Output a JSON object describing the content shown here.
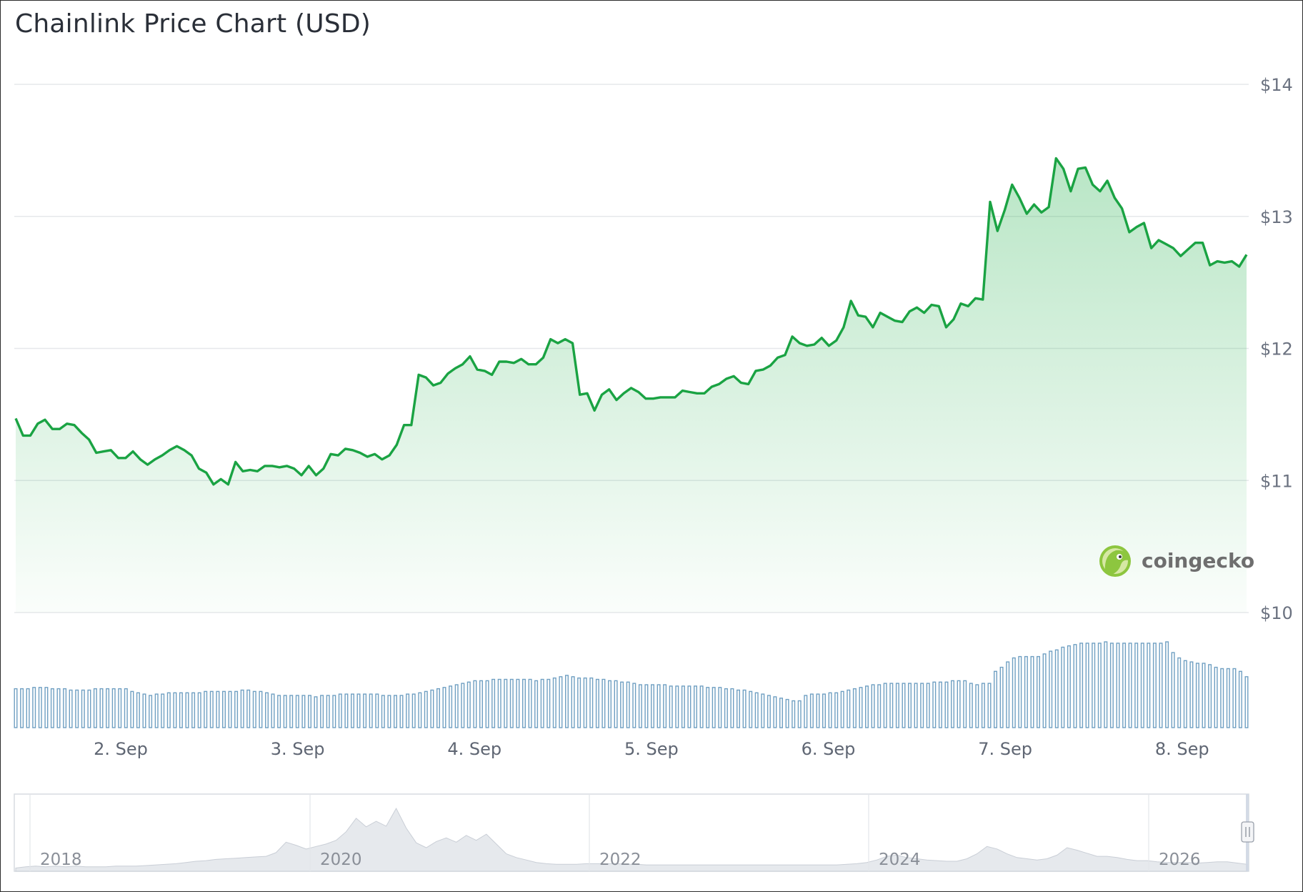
{
  "title": "Chainlink Price Chart (USD)",
  "brand": {
    "name": "coingecko",
    "logo_icon": "gecko-logo-icon"
  },
  "colors": {
    "price_line": "#1aa343",
    "price_fill": "#22b04b",
    "volume_bar": "#6f9fc2",
    "navigator_area": "#e6e9ed",
    "grid": "#e6e8eb"
  },
  "chart_data": {
    "type": "line",
    "title": "Chainlink Price Chart (USD)",
    "y_unit": "USD",
    "ylim": [
      10,
      14
    ],
    "y_ticks": [
      10,
      11,
      12,
      13,
      14
    ],
    "y_tick_labels": [
      "$10",
      "$11",
      "$12",
      "$13",
      "$14"
    ],
    "x_start": "2026-09-01T09:45",
    "x_end": "2026-09-08T08:45",
    "x_ticks": [
      "2026-09-02",
      "2026-09-03",
      "2026-09-04",
      "2026-09-05",
      "2026-09-06",
      "2026-09-07",
      "2026-09-08"
    ],
    "x_tick_labels": [
      "2. Sep",
      "3. Sep",
      "4. Sep",
      "5. Sep",
      "6. Sep",
      "7. Sep",
      "8. Sep"
    ],
    "grid": true,
    "series": [
      {
        "kind": "price",
        "values": [
          11.47,
          11.34,
          11.34,
          11.43,
          11.46,
          11.39,
          11.39,
          11.43,
          11.42,
          11.36,
          11.31,
          11.21,
          11.22,
          11.23,
          11.17,
          11.17,
          11.22,
          11.16,
          11.12,
          11.16,
          11.19,
          11.23,
          11.26,
          11.23,
          11.19,
          11.09,
          11.06,
          10.97,
          11.01,
          10.97,
          11.14,
          11.07,
          11.08,
          11.07,
          11.11,
          11.11,
          11.1,
          11.11,
          11.09,
          11.04,
          11.11,
          11.04,
          11.09,
          11.2,
          11.19,
          11.24,
          11.23,
          11.21,
          11.18,
          11.2,
          11.16,
          11.19,
          11.27,
          11.42,
          11.42,
          11.8,
          11.78,
          11.72,
          11.74,
          11.81,
          11.85,
          11.88,
          11.94,
          11.84,
          11.83,
          11.8,
          11.9,
          11.9,
          11.89,
          11.92,
          11.88,
          11.88,
          11.93,
          12.07,
          12.04,
          12.07,
          12.04,
          11.65,
          11.66,
          11.53,
          11.65,
          11.69,
          11.61,
          11.66,
          11.7,
          11.67,
          11.62,
          11.62,
          11.63,
          11.63,
          11.63,
          11.68,
          11.67,
          11.66,
          11.66,
          11.71,
          11.73,
          11.77,
          11.79,
          11.74,
          11.73,
          11.83,
          11.84,
          11.87,
          11.93,
          11.95,
          12.09,
          12.04,
          12.02,
          12.03,
          12.08,
          12.02,
          12.06,
          12.16,
          12.36,
          12.25,
          12.24,
          12.16,
          12.27,
          12.24,
          12.21,
          12.2,
          12.28,
          12.31,
          12.27,
          12.33,
          12.32,
          12.16,
          12.22,
          12.34,
          12.32,
          12.38,
          12.37,
          13.11,
          12.89,
          13.05,
          13.24,
          13.14,
          13.02,
          13.09,
          13.03,
          13.07,
          13.44,
          13.36,
          13.19,
          13.36,
          13.37,
          13.24,
          13.19,
          13.27,
          13.14,
          13.06,
          12.88,
          12.92,
          12.95,
          12.76,
          12.82,
          12.79,
          12.76,
          12.7,
          12.75,
          12.8,
          12.8,
          12.63,
          12.66,
          12.65,
          12.66,
          12.62,
          12.71
        ]
      },
      {
        "kind": "volume",
        "values": [
          29,
          29,
          29,
          30,
          30,
          30,
          29,
          29,
          29,
          28,
          28,
          28,
          28,
          29,
          29,
          29,
          29,
          29,
          29,
          27,
          26,
          25,
          24,
          25,
          25,
          26,
          26,
          26,
          26,
          26,
          26,
          27,
          27,
          27,
          27,
          27,
          27,
          28,
          28,
          27,
          27,
          26,
          25,
          24,
          24,
          24,
          24,
          24,
          24,
          23,
          24,
          24,
          24,
          25,
          25,
          25,
          25,
          25,
          25,
          25,
          24,
          24,
          24,
          24,
          25,
          25,
          26,
          27,
          28,
          29,
          30,
          31,
          32,
          33,
          34,
          35,
          35,
          35,
          36,
          36,
          36,
          36,
          36,
          36,
          36,
          35,
          36,
          36,
          37,
          38,
          39,
          38,
          37,
          37,
          37,
          36,
          36,
          35,
          35,
          34,
          34,
          33,
          32,
          32,
          32,
          32,
          32,
          31,
          31,
          31,
          31,
          31,
          31,
          30,
          30,
          30,
          29,
          29,
          28,
          28,
          27,
          26,
          25,
          24,
          23,
          22,
          21,
          20,
          20,
          24,
          25,
          25,
          25,
          26,
          26,
          27,
          28,
          29,
          30,
          31,
          32,
          32,
          33,
          33,
          33,
          33,
          33,
          33,
          33,
          33,
          34,
          34,
          34,
          35,
          35,
          35,
          33,
          32,
          33,
          33,
          42,
          45,
          49,
          52,
          53,
          53,
          53,
          53,
          55,
          57,
          58,
          60,
          61,
          62,
          63,
          63,
          63,
          63,
          64,
          63,
          63,
          63,
          63,
          63,
          63,
          63,
          63,
          63,
          64,
          56,
          52,
          50,
          49,
          48,
          48,
          47,
          45,
          44,
          44,
          44,
          42,
          38
        ]
      }
    ],
    "navigator": {
      "x_tick_labels": [
        "2018",
        "2020",
        "2022",
        "2024",
        "2026"
      ],
      "values": [
        0.03,
        0.05,
        0.06,
        0.05,
        0.06,
        0.05,
        0.06,
        0.05,
        0.05,
        0.05,
        0.06,
        0.06,
        0.06,
        0.07,
        0.08,
        0.09,
        0.1,
        0.12,
        0.14,
        0.15,
        0.17,
        0.18,
        0.19,
        0.2,
        0.21,
        0.22,
        0.28,
        0.45,
        0.4,
        0.34,
        0.38,
        0.42,
        0.48,
        0.62,
        0.84,
        0.7,
        0.79,
        0.71,
        1.0,
        0.68,
        0.44,
        0.36,
        0.46,
        0.52,
        0.45,
        0.56,
        0.48,
        0.58,
        0.42,
        0.26,
        0.2,
        0.16,
        0.12,
        0.1,
        0.09,
        0.09,
        0.09,
        0.1,
        0.1,
        0.1,
        0.1,
        0.09,
        0.09,
        0.08,
        0.08,
        0.08,
        0.08,
        0.08,
        0.08,
        0.08,
        0.08,
        0.08,
        0.08,
        0.08,
        0.08,
        0.08,
        0.08,
        0.08,
        0.08,
        0.08,
        0.08,
        0.08,
        0.08,
        0.09,
        0.1,
        0.12,
        0.16,
        0.22,
        0.24,
        0.2,
        0.18,
        0.16,
        0.15,
        0.14,
        0.14,
        0.18,
        0.26,
        0.38,
        0.34,
        0.26,
        0.2,
        0.18,
        0.16,
        0.18,
        0.24,
        0.36,
        0.32,
        0.27,
        0.22,
        0.22,
        0.2,
        0.17,
        0.15,
        0.15,
        0.13,
        0.12,
        0.12,
        0.12,
        0.11,
        0.12,
        0.13,
        0.13,
        0.11,
        0.09
      ]
    }
  }
}
